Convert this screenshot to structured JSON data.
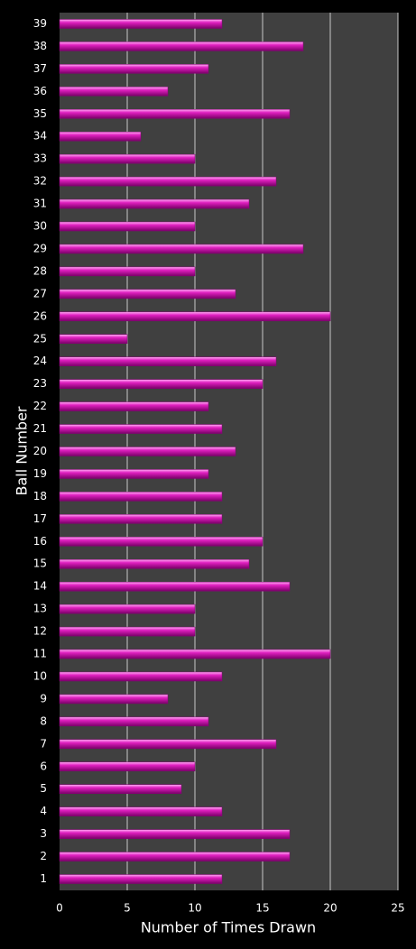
{
  "chart_data": {
    "type": "bar",
    "orientation": "horizontal",
    "x_label": "Number of Times Drawn",
    "y_label": "Ball Number",
    "categories": [
      "1",
      "2",
      "3",
      "4",
      "5",
      "6",
      "7",
      "8",
      "9",
      "10",
      "11",
      "12",
      "13",
      "14",
      "15",
      "16",
      "17",
      "18",
      "19",
      "20",
      "21",
      "22",
      "23",
      "24",
      "25",
      "26",
      "27",
      "28",
      "29",
      "30",
      "31",
      "32",
      "33",
      "34",
      "35",
      "36",
      "37",
      "38",
      "39"
    ],
    "values": [
      12,
      17,
      17,
      12,
      9,
      10,
      16,
      11,
      8,
      12,
      20,
      10,
      10,
      17,
      14,
      15,
      12,
      12,
      11,
      13,
      12,
      11,
      15,
      16,
      5,
      20,
      13,
      10,
      18,
      10,
      14,
      16,
      10,
      6,
      17,
      8,
      11,
      18,
      12
    ],
    "color": "#e020c0",
    "xlim": [
      0,
      25
    ],
    "xticks": [
      0,
      5,
      10,
      15,
      20,
      25
    ],
    "grid": true
  }
}
